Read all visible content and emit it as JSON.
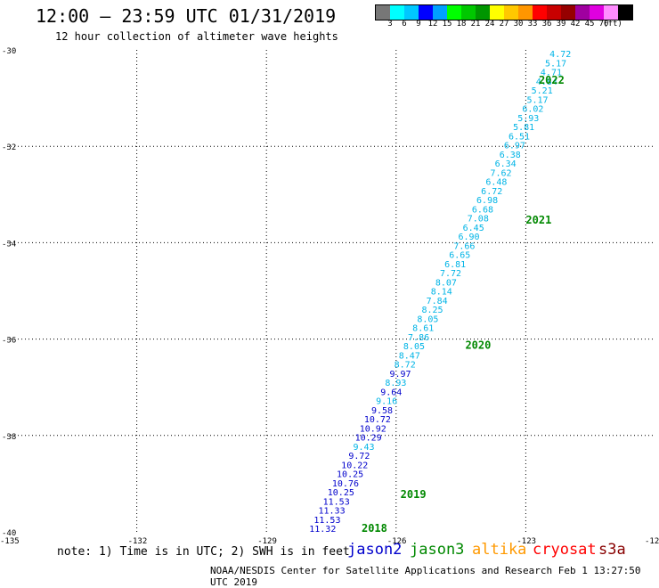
{
  "header": {
    "title": "12:00 — 23:59 UTC 01/31/2019",
    "subtitle": "12 hour collection of altimeter wave heights"
  },
  "legend": {
    "unit": "(ft)",
    "colors": [
      "#777777",
      "#00ffff",
      "#00c8ff",
      "#0000ff",
      "#00a0ff",
      "#00ff00",
      "#00c800",
      "#009600",
      "#ffff00",
      "#ffc800",
      "#ff9600",
      "#ff0000",
      "#c80000",
      "#960000",
      "#a000a0",
      "#e000e0",
      "#ff8cff",
      "#000000"
    ],
    "ticks": [
      "3",
      "6",
      "9",
      "12",
      "15",
      "18",
      "21",
      "24",
      "27",
      "30",
      "33",
      "36",
      "39",
      "42",
      "45",
      "70"
    ]
  },
  "footer": {
    "note": "note: 1) Time is in UTC; 2) SWH is in feet",
    "credit": "NOAA/NESDIS Center for Satellite Applications and Research   Feb  1 13:27:50 UTC 2019",
    "satellites": [
      {
        "name": "jason2",
        "color": "#0000cc"
      },
      {
        "name": "jason3",
        "color": "#008800"
      },
      {
        "name": "altika",
        "color": "#ff9900"
      },
      {
        "name": "cryosat",
        "color": "#ff0000"
      },
      {
        "name": "s3a",
        "color": "#880000"
      }
    ]
  },
  "chart_data": {
    "type": "scatter",
    "xlim": [
      -135,
      -120
    ],
    "ylim": [
      -40,
      -30
    ],
    "xticks": [
      "-135",
      "-132",
      "-129",
      "-126",
      "-123",
      "-120"
    ],
    "yticks": [
      "-30",
      "-32",
      "-34",
      "-36",
      "-38",
      "-40"
    ],
    "grid": true,
    "time_labels": [
      {
        "text": "2022",
        "x": -122.7,
        "y": -30.7
      },
      {
        "text": "2021",
        "x": -123.0,
        "y": -33.6
      },
      {
        "text": "2020",
        "x": -124.4,
        "y": -36.2
      },
      {
        "text": "2019",
        "x": -125.9,
        "y": -39.3
      },
      {
        "text": "2018",
        "x": -126.8,
        "y": -40.0
      }
    ],
    "series": [
      {
        "name": "jason2",
        "color": "#00bbee",
        "x_start": -122.2,
        "x_end": -127.7,
        "y_start": -30.15,
        "values": [
          4.72,
          5.17,
          4.71,
          4.84,
          5.21,
          5.17,
          6.02,
          5.93,
          5.81,
          6.51,
          6.97,
          6.38,
          6.34,
          7.62,
          6.48,
          6.72,
          6.98,
          6.68,
          7.08,
          6.45,
          6.9,
          7.66,
          6.65,
          6.81,
          7.72,
          8.07,
          8.14,
          7.84,
          8.25,
          8.05,
          8.61,
          7.86,
          8.05,
          8.47,
          8.72,
          9.97,
          8.93,
          9.64,
          9.16,
          9.58,
          10.72,
          10.92,
          10.29,
          9.43,
          9.72,
          10.22,
          10.25,
          10.76,
          10.25,
          11.53,
          11.33,
          11.53,
          11.32
        ]
      }
    ]
  }
}
